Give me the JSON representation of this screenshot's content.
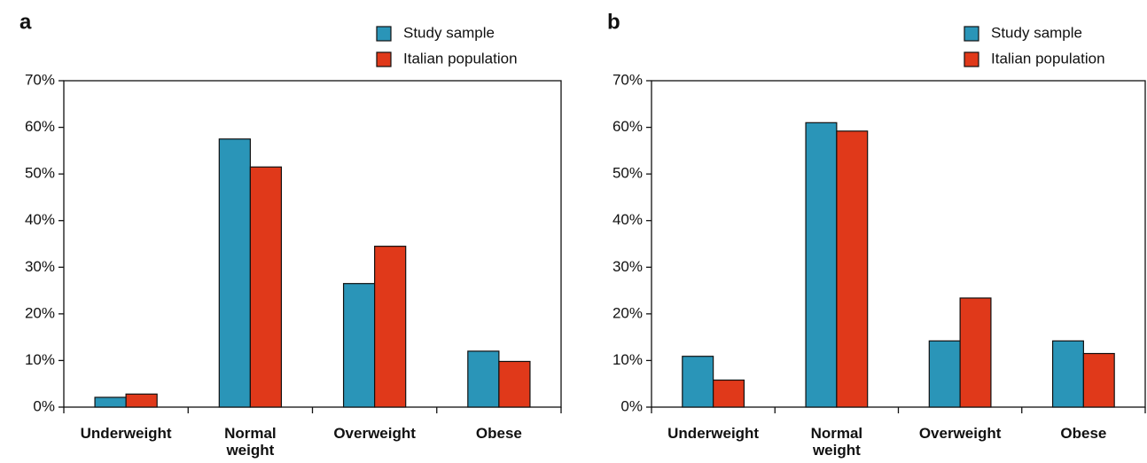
{
  "chart_data": [
    {
      "type": "bar",
      "panel_label": "a",
      "categories": [
        "Underweight",
        "Normal weight",
        "Overweight",
        "Obese"
      ],
      "series": [
        {
          "name": "Study sample",
          "color": "#2a95b8",
          "values": [
            2.1,
            57.5,
            26.5,
            12.0
          ]
        },
        {
          "name": "Italian population",
          "color": "#e0391a",
          "values": [
            2.8,
            51.5,
            34.5,
            9.8
          ]
        }
      ],
      "ylim": [
        0,
        70
      ],
      "yticks": [
        {
          "value": 0,
          "label": "0%"
        },
        {
          "value": 10,
          "label": "10%"
        },
        {
          "value": 20,
          "label": "20%"
        },
        {
          "value": 30,
          "label": "30%"
        },
        {
          "value": 40,
          "label": "40%"
        },
        {
          "value": 50,
          "label": "50%"
        },
        {
          "value": 60,
          "label": "60%"
        },
        {
          "value": 70,
          "label": "70%"
        }
      ],
      "legend": "top-right"
    },
    {
      "type": "bar",
      "panel_label": "b",
      "categories": [
        "Underweight",
        "Normal weight",
        "Overweight",
        "Obese"
      ],
      "series": [
        {
          "name": "Study sample",
          "color": "#2a95b8",
          "values": [
            10.9,
            61.0,
            14.2,
            14.2
          ]
        },
        {
          "name": "Italian population",
          "color": "#e0391a",
          "values": [
            5.8,
            59.2,
            23.4,
            11.5
          ]
        }
      ],
      "ylim": [
        0,
        70
      ],
      "yticks": [
        {
          "value": 0,
          "label": "0%"
        },
        {
          "value": 10,
          "label": "10%"
        },
        {
          "value": 20,
          "label": "20%"
        },
        {
          "value": 30,
          "label": "30%"
        },
        {
          "value": 40,
          "label": "40%"
        },
        {
          "value": 50,
          "label": "50%"
        },
        {
          "value": 60,
          "label": "60%"
        },
        {
          "value": 70,
          "label": "70%"
        }
      ],
      "legend": "top-right"
    }
  ]
}
